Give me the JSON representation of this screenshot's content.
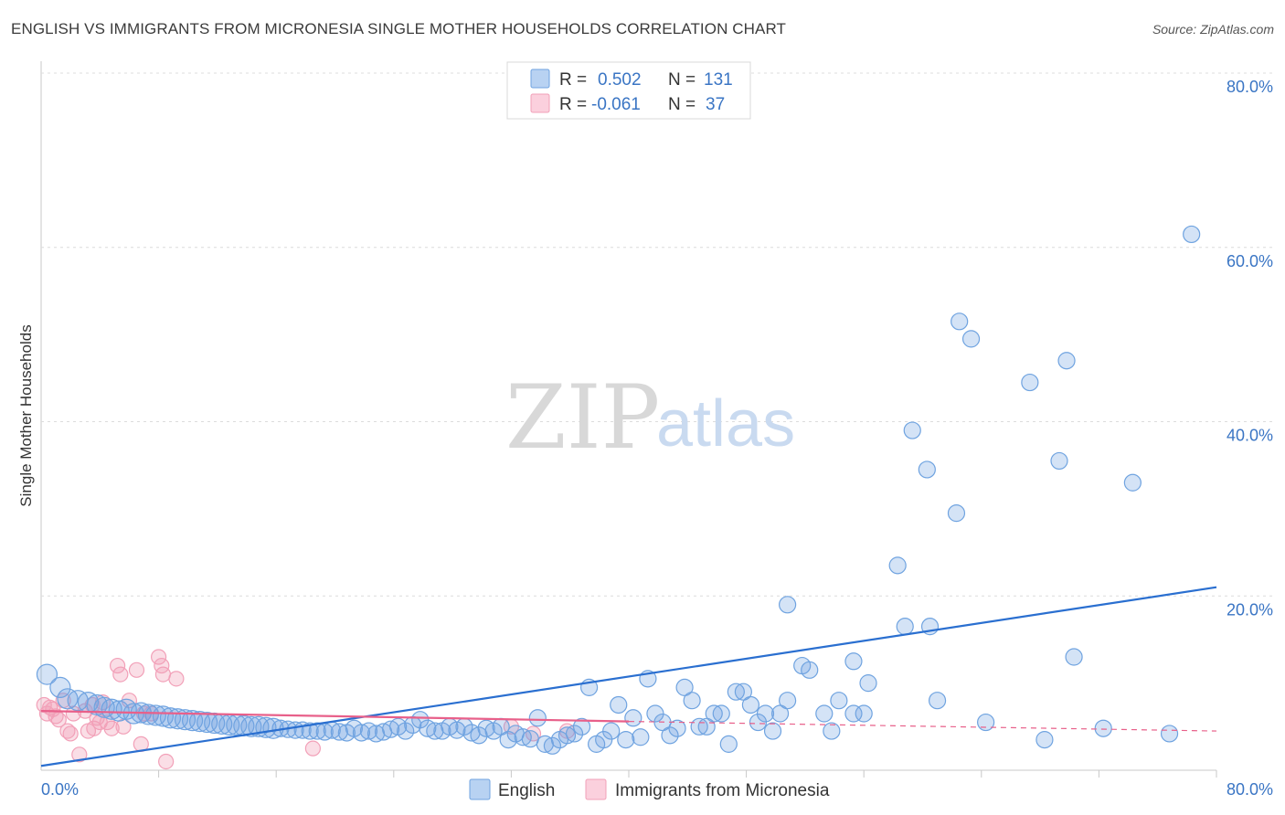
{
  "title": "ENGLISH VS IMMIGRANTS FROM MICRONESIA SINGLE MOTHER HOUSEHOLDS CORRELATION CHART",
  "source": "Source: ZipAtlas.com",
  "watermark": {
    "zip": "ZIP",
    "atlas": "atlas"
  },
  "colors": {
    "english": "#6fa3e0",
    "english_line": "#2a6fd0",
    "micronesia": "#f2a0b8",
    "micronesia_line": "#e8608a",
    "tick": "#3a75c4"
  },
  "legend": {
    "english": {
      "r_label": "R =",
      "r_value": "0.502",
      "n_label": "N =",
      "n_value": "131"
    },
    "micronesia": {
      "r_label": "R =",
      "r_value": "-0.061",
      "n_label": "N =",
      "n_value": "37"
    }
  },
  "bottom_legend": {
    "english": "English",
    "micronesia": "Immigrants from Micronesia"
  },
  "chart_data": {
    "type": "scatter",
    "title": "ENGLISH VS IMMIGRANTS FROM MICRONESIA SINGLE MOTHER HOUSEHOLDS CORRELATION CHART",
    "ylabel": "Single Mother Households",
    "xlabel": "",
    "xlim": [
      0,
      80
    ],
    "ylim": [
      0,
      80
    ],
    "x_tick_labels": [
      {
        "value": 0,
        "label": "0.0%"
      },
      {
        "value": 80,
        "label": "80.0%"
      }
    ],
    "y_tick_labels": [
      {
        "value": 20,
        "label": "20.0%"
      },
      {
        "value": 40,
        "label": "40.0%"
      },
      {
        "value": 60,
        "label": "60.0%"
      },
      {
        "value": 80,
        "label": "80.0%"
      }
    ],
    "series": [
      {
        "name": "English",
        "trend": [
          [
            0,
            0.5
          ],
          [
            80,
            21.0
          ]
        ],
        "points": [
          [
            0.4,
            11
          ],
          [
            1.3,
            9.5
          ],
          [
            1.8,
            8.2
          ],
          [
            2.5,
            8.0
          ],
          [
            3.2,
            7.8
          ],
          [
            3.8,
            7.5
          ],
          [
            4.3,
            7.2
          ],
          [
            4.8,
            7.0
          ],
          [
            5.3,
            6.8
          ],
          [
            5.8,
            7.0
          ],
          [
            6.3,
            6.5
          ],
          [
            6.8,
            6.6
          ],
          [
            7.3,
            6.4
          ],
          [
            7.8,
            6.3
          ],
          [
            8.3,
            6.2
          ],
          [
            8.8,
            6.0
          ],
          [
            9.3,
            5.9
          ],
          [
            9.8,
            5.8
          ],
          [
            10.3,
            5.7
          ],
          [
            10.8,
            5.6
          ],
          [
            11.3,
            5.5
          ],
          [
            11.8,
            5.4
          ],
          [
            12.3,
            5.3
          ],
          [
            12.8,
            5.2
          ],
          [
            13.3,
            5.2
          ],
          [
            13.8,
            5.1
          ],
          [
            14.3,
            5.0
          ],
          [
            14.8,
            5.0
          ],
          [
            15.3,
            4.9
          ],
          [
            15.8,
            4.8
          ],
          [
            16.3,
            4.8
          ],
          [
            16.8,
            4.7
          ],
          [
            17.3,
            4.6
          ],
          [
            17.8,
            4.6
          ],
          [
            18.3,
            4.5
          ],
          [
            18.8,
            4.5
          ],
          [
            19.3,
            4.4
          ],
          [
            19.8,
            4.6
          ],
          [
            20.3,
            4.4
          ],
          [
            20.8,
            4.3
          ],
          [
            21.3,
            4.8
          ],
          [
            21.8,
            4.3
          ],
          [
            22.3,
            4.5
          ],
          [
            22.8,
            4.2
          ],
          [
            23.3,
            4.4
          ],
          [
            23.8,
            4.7
          ],
          [
            24.3,
            5.0
          ],
          [
            24.8,
            4.5
          ],
          [
            25.3,
            5.2
          ],
          [
            25.8,
            5.8
          ],
          [
            26.3,
            4.8
          ],
          [
            26.8,
            4.5
          ],
          [
            27.3,
            4.5
          ],
          [
            27.8,
            5.0
          ],
          [
            28.3,
            4.6
          ],
          [
            28.8,
            5.0
          ],
          [
            29.3,
            4.3
          ],
          [
            29.8,
            4.0
          ],
          [
            30.3,
            4.8
          ],
          [
            30.8,
            4.5
          ],
          [
            31.3,
            5.0
          ],
          [
            31.8,
            3.5
          ],
          [
            32.3,
            4.2
          ],
          [
            32.8,
            3.8
          ],
          [
            33.3,
            3.6
          ],
          [
            33.8,
            6.0
          ],
          [
            34.3,
            3.0
          ],
          [
            34.8,
            2.8
          ],
          [
            35.3,
            3.5
          ],
          [
            35.8,
            4.0
          ],
          [
            36.3,
            4.2
          ],
          [
            36.8,
            5.0
          ],
          [
            37.3,
            9.5
          ],
          [
            37.8,
            3.0
          ],
          [
            38.3,
            3.5
          ],
          [
            38.8,
            4.5
          ],
          [
            39.3,
            7.5
          ],
          [
            39.8,
            3.5
          ],
          [
            40.3,
            6.0
          ],
          [
            40.8,
            3.8
          ],
          [
            41.3,
            10.5
          ],
          [
            41.8,
            6.5
          ],
          [
            42.3,
            5.5
          ],
          [
            42.8,
            4.0
          ],
          [
            43.3,
            4.8
          ],
          [
            43.8,
            9.5
          ],
          [
            44.3,
            8.0
          ],
          [
            44.8,
            5.0
          ],
          [
            45.3,
            5.0
          ],
          [
            45.8,
            6.5
          ],
          [
            46.3,
            6.5
          ],
          [
            46.8,
            3.0
          ],
          [
            47.3,
            9.0
          ],
          [
            47.8,
            9.0
          ],
          [
            48.3,
            7.5
          ],
          [
            48.8,
            5.5
          ],
          [
            49.3,
            6.5
          ],
          [
            49.8,
            4.5
          ],
          [
            50.3,
            6.5
          ],
          [
            50.8,
            8.0
          ],
          [
            50.8,
            19.0
          ],
          [
            51.8,
            12.0
          ],
          [
            52.3,
            11.5
          ],
          [
            53.3,
            6.5
          ],
          [
            53.8,
            4.5
          ],
          [
            54.3,
            8.0
          ],
          [
            55.3,
            12.5
          ],
          [
            55.3,
            6.5
          ],
          [
            56.0,
            6.5
          ],
          [
            56.3,
            10.0
          ],
          [
            58.3,
            23.5
          ],
          [
            58.8,
            16.5
          ],
          [
            59.3,
            39.0
          ],
          [
            60.3,
            34.5
          ],
          [
            60.5,
            16.5
          ],
          [
            61.0,
            8.0
          ],
          [
            62.3,
            29.5
          ],
          [
            62.5,
            51.5
          ],
          [
            63.3,
            49.5
          ],
          [
            64.3,
            5.5
          ],
          [
            67.3,
            44.5
          ],
          [
            68.3,
            3.5
          ],
          [
            69.3,
            35.5
          ],
          [
            69.8,
            47.0
          ],
          [
            70.3,
            13.0
          ],
          [
            72.3,
            4.8
          ],
          [
            74.3,
            33.0
          ],
          [
            76.8,
            4.2
          ],
          [
            78.3,
            61.5
          ]
        ]
      },
      {
        "name": "Immigrants from Micronesia",
        "trend": [
          [
            0,
            6.8
          ],
          [
            40,
            5.6
          ]
        ],
        "trend_dashed": [
          [
            40,
            5.6
          ],
          [
            80,
            4.5
          ]
        ],
        "points": [
          [
            0.2,
            7.5
          ],
          [
            0.4,
            6.5
          ],
          [
            0.6,
            7.2
          ],
          [
            0.8,
            7.0
          ],
          [
            1.0,
            6.2
          ],
          [
            1.2,
            5.8
          ],
          [
            1.5,
            8.0
          ],
          [
            1.8,
            4.5
          ],
          [
            2.0,
            4.2
          ],
          [
            2.2,
            6.5
          ],
          [
            2.6,
            1.8
          ],
          [
            3.0,
            6.8
          ],
          [
            3.2,
            4.5
          ],
          [
            3.5,
            7.5
          ],
          [
            3.6,
            4.8
          ],
          [
            3.8,
            6.0
          ],
          [
            4.0,
            5.5
          ],
          [
            4.2,
            7.8
          ],
          [
            4.5,
            5.5
          ],
          [
            4.8,
            4.8
          ],
          [
            5.2,
            12.0
          ],
          [
            5.4,
            11.0
          ],
          [
            5.6,
            5.0
          ],
          [
            6.0,
            8.0
          ],
          [
            6.5,
            11.5
          ],
          [
            6.8,
            3.0
          ],
          [
            7.0,
            6.5
          ],
          [
            7.5,
            6.5
          ],
          [
            8.0,
            13.0
          ],
          [
            8.2,
            12.0
          ],
          [
            8.3,
            11.0
          ],
          [
            8.5,
            1.0
          ],
          [
            9.2,
            10.5
          ],
          [
            18.5,
            2.5
          ],
          [
            32.0,
            5.0
          ],
          [
            33.5,
            4.2
          ],
          [
            35.8,
            4.5
          ]
        ]
      }
    ]
  }
}
